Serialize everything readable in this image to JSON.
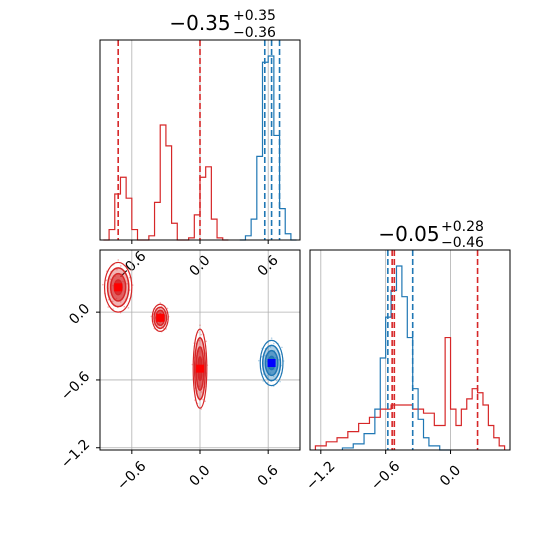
{
  "chart_data": [
    {
      "type": "histogram",
      "panel": "marginal-x",
      "title": {
        "main": "−0.35",
        "sup": "+0.35",
        "sub": "−0.36"
      },
      "xlim": [
        -0.88,
        0.88
      ],
      "xticks": [
        -0.6,
        0.0,
        0.6
      ],
      "ytick_labels": false,
      "grid": true,
      "series": [
        {
          "color": "#d62728",
          "bin_edges": [
            -0.85,
            -0.8,
            -0.75,
            -0.7,
            -0.65,
            -0.6,
            -0.55,
            -0.5,
            -0.45,
            -0.4,
            -0.35,
            -0.3,
            -0.25,
            -0.2,
            -0.15,
            -0.1,
            -0.05,
            0.0,
            0.05,
            0.1,
            0.15,
            0.2,
            0.25
          ],
          "values": [
            0.0,
            0.05,
            0.22,
            0.3,
            0.2,
            0.05,
            0.0,
            0.0,
            0.02,
            0.18,
            0.55,
            0.45,
            0.08,
            0.0,
            0.0,
            0.01,
            0.12,
            0.3,
            0.35,
            0.1,
            0.01,
            0.0
          ]
        },
        {
          "color": "#1f77b4",
          "bin_edges": [
            0.35,
            0.4,
            0.45,
            0.5,
            0.55,
            0.6,
            0.65,
            0.7,
            0.75,
            0.8,
            0.85
          ],
          "values": [
            0.0,
            0.02,
            0.1,
            0.4,
            0.85,
            0.88,
            0.5,
            0.15,
            0.03,
            0.0
          ]
        }
      ],
      "vlines": [
        {
          "x": -0.72,
          "color": "#d62728"
        },
        {
          "x": 0.0,
          "color": "#d62728"
        },
        {
          "x": 0.57,
          "color": "#1f77b4"
        },
        {
          "x": 0.63,
          "color": "#1f77b4"
        },
        {
          "x": 0.7,
          "color": "#1f77b4"
        }
      ]
    },
    {
      "type": "histogram",
      "panel": "marginal-y",
      "title": {
        "main": "−0.05",
        "sup": "+0.28",
        "sub": "−0.46"
      },
      "xlim": [
        -1.3,
        0.55
      ],
      "xticks": [
        -1.2,
        -0.6,
        0.0
      ],
      "ytick_labels": false,
      "grid": true,
      "series": [
        {
          "color": "#d62728",
          "bin_edges": [
            -1.25,
            -1.15,
            -1.05,
            -0.95,
            -0.85,
            -0.75,
            -0.65,
            -0.55,
            -0.45,
            -0.35,
            -0.25,
            -0.15,
            -0.05,
            0.0,
            0.05,
            0.1,
            0.15,
            0.2,
            0.25,
            0.3,
            0.35,
            0.4,
            0.45,
            0.5
          ],
          "values": [
            0.02,
            0.04,
            0.06,
            0.09,
            0.13,
            0.16,
            0.2,
            0.22,
            0.22,
            0.2,
            0.18,
            0.12,
            0.55,
            0.2,
            0.12,
            0.2,
            0.25,
            0.3,
            0.28,
            0.22,
            0.12,
            0.06,
            0.02
          ]
        },
        {
          "color": "#1f77b4",
          "bin_edges": [
            -1.0,
            -0.9,
            -0.8,
            -0.7,
            -0.65,
            -0.6,
            -0.55,
            -0.5,
            -0.45,
            -0.4,
            -0.35,
            -0.3,
            -0.25,
            -0.2,
            -0.1,
            0.0
          ],
          "values": [
            0.01,
            0.03,
            0.08,
            0.2,
            0.45,
            0.65,
            0.78,
            0.9,
            0.75,
            0.55,
            0.3,
            0.15,
            0.06,
            0.02,
            0.0
          ]
        }
      ],
      "vlines": [
        {
          "x": -0.58,
          "color": "#1f77b4"
        },
        {
          "x": -0.54,
          "color": "#d62728"
        },
        {
          "x": -0.52,
          "color": "#d62728"
        },
        {
          "x": -0.35,
          "color": "#1f77b4"
        },
        {
          "x": 0.25,
          "color": "#d62728"
        }
      ]
    },
    {
      "type": "contour",
      "panel": "joint",
      "xlim": [
        -0.88,
        0.88
      ],
      "ylim": [
        -1.22,
        0.55
      ],
      "xticks": [
        -0.6,
        0.0,
        0.6
      ],
      "yticks": [
        -1.2,
        -0.6,
        0.0
      ],
      "grid": true,
      "series": [
        {
          "color": "#d62728",
          "marker_color": "#ff0000",
          "modes": [
            {
              "x": -0.72,
              "y": 0.22,
              "sx": 0.12,
              "sy": 0.22
            },
            {
              "x": -0.35,
              "y": -0.05,
              "sx": 0.07,
              "sy": 0.12
            },
            {
              "x": 0.0,
              "y": -0.5,
              "sx": 0.06,
              "sy": 0.35
            }
          ]
        },
        {
          "color": "#1f77b4",
          "marker_color": "#0000ff",
          "modes": [
            {
              "x": 0.63,
              "y": -0.45,
              "sx": 0.1,
              "sy": 0.2
            }
          ]
        }
      ]
    }
  ]
}
